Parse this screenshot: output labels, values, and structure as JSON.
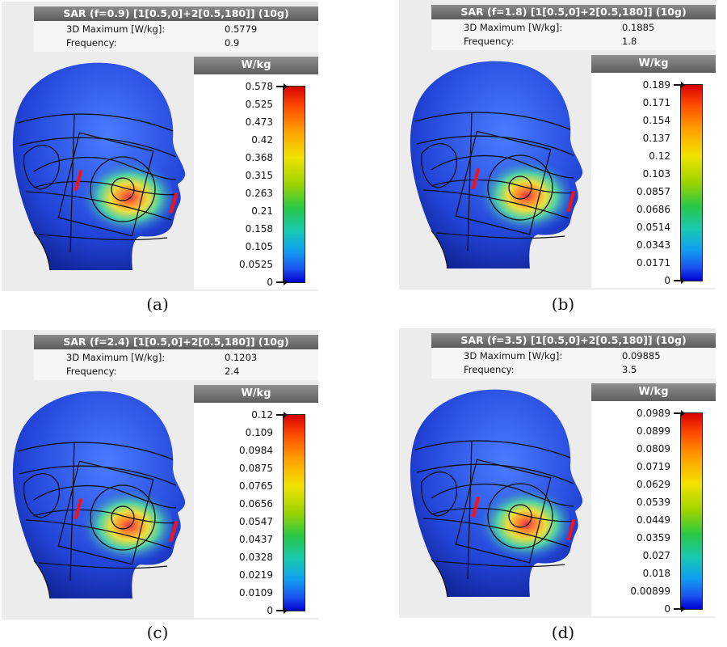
{
  "panels": [
    {
      "id": "a",
      "title": "SAR (f=0.9) [1[0.5,0]+2[0.5,180]] (10g)",
      "max_label": "3D Maximum [W/kg]:",
      "max_value": "0.5779",
      "freq_label": "Frequency:",
      "freq_value": "0.9",
      "unit": "W/kg",
      "ticks": [
        "0.578",
        "0.525",
        "0.473",
        "0.42",
        "0.368",
        "0.315",
        "0.263",
        "0.21",
        "0.158",
        "0.105",
        "0.0525",
        "0"
      ],
      "caption": "(a)"
    },
    {
      "id": "b",
      "title": "SAR (f=1.8) [1[0.5,0]+2[0.5,180]] (10g)",
      "max_label": "3D Maximum [W/kg]:",
      "max_value": "0.1885",
      "freq_label": "Frequency:",
      "freq_value": "1.8",
      "unit": "W/kg",
      "ticks": [
        "0.189",
        "0.171",
        "0.154",
        "0.137",
        "0.12",
        "0.103",
        "0.0857",
        "0.0686",
        "0.0514",
        "0.0343",
        "0.0171",
        "0"
      ],
      "caption": "(b)"
    },
    {
      "id": "c",
      "title": "SAR (f=2.4) [1[0.5,0]+2[0.5,180]] (10g)",
      "max_label": "3D Maximum [W/kg]:",
      "max_value": "0.1203",
      "freq_label": "Frequency:",
      "freq_value": "2.4",
      "unit": "W/kg",
      "ticks": [
        "0.12",
        "0.109",
        "0.0984",
        "0.0875",
        "0.0765",
        "0.0656",
        "0.0547",
        "0.0437",
        "0.0328",
        "0.0219",
        "0.0109",
        "0"
      ],
      "caption": "(c)"
    },
    {
      "id": "d",
      "title": "SAR (f=3.5) [1[0.5,0]+2[0.5,180]] (10g)",
      "max_label": "3D Maximum [W/kg]:",
      "max_value": "0.09885",
      "freq_label": "Frequency:",
      "freq_value": "3.5",
      "unit": "W/kg",
      "ticks": [
        "0.0989",
        "0.0899",
        "0.0809",
        "0.0719",
        "0.0629",
        "0.0539",
        "0.0449",
        "0.0359",
        "0.027",
        "0.018",
        "0.00899",
        "0"
      ],
      "caption": "(d)"
    }
  ]
}
